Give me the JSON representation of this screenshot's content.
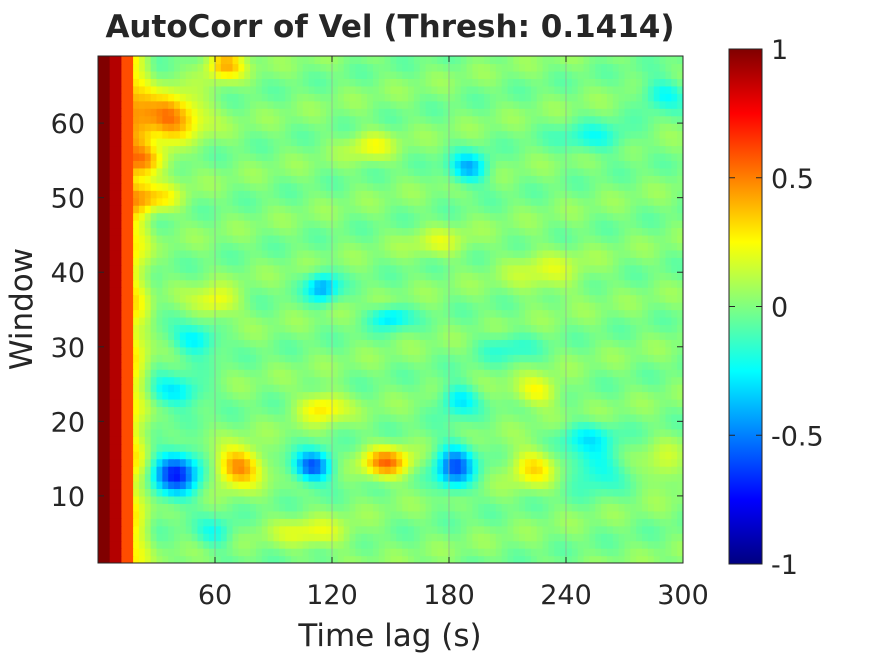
{
  "chart_data": {
    "type": "heatmap",
    "title": "AutoCorr of Vel (Thresh: 0.1414)",
    "xlabel": "Time lag (s)",
    "ylabel": "Window",
    "xlim": [
      0,
      300
    ],
    "ylim": [
      1,
      69
    ],
    "x_ticks": [
      60,
      120,
      180,
      240,
      300
    ],
    "y_ticks": [
      10,
      20,
      30,
      40,
      50,
      60
    ],
    "x_tick_labels": [
      "60",
      "120",
      "180",
      "240",
      "300"
    ],
    "y_tick_labels": [
      "10",
      "20",
      "30",
      "40",
      "50",
      "60"
    ],
    "grid": true,
    "colormap": "jet",
    "clim": [
      -1,
      1
    ],
    "colorbar_ticks": [
      1,
      0.5,
      0,
      -0.5,
      -1
    ],
    "colorbar_tick_labels": [
      "1",
      "0.5",
      "0",
      "-0.5",
      "-1"
    ],
    "colors": {
      "grid": "#9aa59a",
      "axis": "#262626",
      "background": "#ffffff"
    },
    "notable_features": [
      {
        "x": 3,
        "y_range": [
          1,
          69
        ],
        "value": 1.0
      },
      {
        "x": 40,
        "y": 13,
        "value": -0.65
      },
      {
        "x": 72,
        "y": 14,
        "value": 0.5
      },
      {
        "x": 110,
        "y": 14,
        "value": -0.6
      },
      {
        "x": 148,
        "y": 14,
        "value": 0.5
      },
      {
        "x": 183,
        "y": 14,
        "value": -0.55
      },
      {
        "x": 223,
        "y": 14,
        "value": 0.3
      },
      {
        "x": 35,
        "y": 61,
        "value": 0.6
      },
      {
        "x": 65,
        "y": 68,
        "value": 0.4
      },
      {
        "x": 190,
        "y": 54,
        "value": -0.45
      },
      {
        "x": 115,
        "y": 38,
        "value": -0.45
      }
    ]
  }
}
